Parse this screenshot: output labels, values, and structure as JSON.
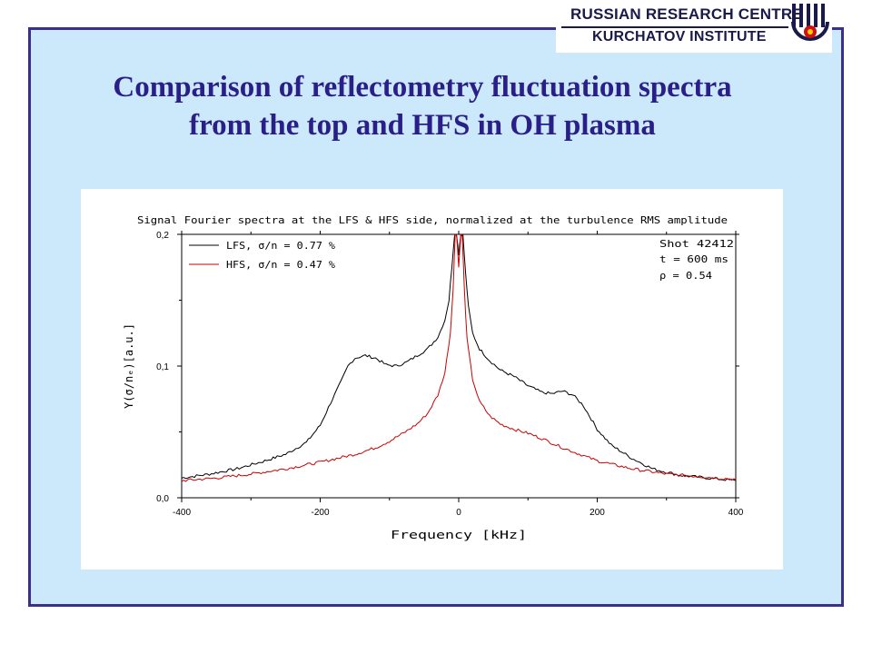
{
  "slide": {
    "title_line1": "Comparison of reflectometry fluctuation spectra",
    "title_line2": "from the top and HFS in OH plasma"
  },
  "logo": {
    "line1": "RUSSIAN RESEARCH CENTRE",
    "line2": "KURCHATOV INSTITUTE"
  },
  "colors": {
    "frame_border": "#3b2f8c",
    "frame_fill": "#cce9fb",
    "title": "#2a1f88",
    "lfs_series": "#000000",
    "hfs_series": "#cc0000"
  },
  "chart_data": {
    "type": "line",
    "title": "Signal Fourier spectra at the LFS & HFS side, normalized at the turbulence RMS amplitude",
    "xlabel": "Frequency [kHz]",
    "ylabel": "Y(σ/nₑ)[a.u.]",
    "xlim": [
      -400,
      400
    ],
    "ylim": [
      0.0,
      0.2
    ],
    "x_ticks": [
      "-400",
      "-200",
      "0",
      "200",
      "400"
    ],
    "y_ticks": [
      "0,0",
      "0,1",
      "0,2"
    ],
    "grid": false,
    "legend": "top-left",
    "annotation": [
      "Shot 42412",
      "t = 600 ms",
      "ρ = 0.54"
    ],
    "series": [
      {
        "name": "LFS, σ/n = 0.77 %",
        "x": [
          -400,
          -360,
          -320,
          -280,
          -250,
          -220,
          -200,
          -185,
          -170,
          -160,
          -150,
          -135,
          -120,
          -105,
          -90,
          -75,
          -60,
          -45,
          -30,
          -20,
          -14,
          -10,
          -6,
          -3,
          0,
          3,
          6,
          10,
          14,
          20,
          30,
          45,
          60,
          80,
          100,
          120,
          135,
          150,
          165,
          180,
          200,
          220,
          250,
          280,
          320,
          360,
          400
        ],
        "values": [
          0.015,
          0.018,
          0.022,
          0.028,
          0.033,
          0.042,
          0.055,
          0.072,
          0.088,
          0.1,
          0.106,
          0.108,
          0.106,
          0.101,
          0.1,
          0.103,
          0.108,
          0.113,
          0.122,
          0.135,
          0.15,
          0.175,
          0.2,
          0.2,
          0.185,
          0.2,
          0.2,
          0.17,
          0.145,
          0.125,
          0.113,
          0.104,
          0.097,
          0.092,
          0.085,
          0.08,
          0.079,
          0.081,
          0.078,
          0.07,
          0.052,
          0.04,
          0.03,
          0.022,
          0.017,
          0.015,
          0.013
        ]
      },
      {
        "name": "HFS, σ/n = 0.47 %",
        "x": [
          -400,
          -350,
          -300,
          -250,
          -200,
          -150,
          -120,
          -100,
          -80,
          -60,
          -45,
          -30,
          -20,
          -12,
          -8,
          -5,
          -3,
          0,
          3,
          5,
          8,
          12,
          20,
          30,
          45,
          60,
          80,
          100,
          120,
          150,
          180,
          200,
          250,
          300,
          350,
          400
        ],
        "values": [
          0.013,
          0.015,
          0.018,
          0.022,
          0.027,
          0.033,
          0.038,
          0.043,
          0.049,
          0.056,
          0.064,
          0.078,
          0.095,
          0.125,
          0.16,
          0.2,
          0.2,
          0.175,
          0.2,
          0.2,
          0.16,
          0.12,
          0.09,
          0.073,
          0.062,
          0.056,
          0.052,
          0.049,
          0.045,
          0.038,
          0.032,
          0.028,
          0.022,
          0.018,
          0.016,
          0.014
        ]
      }
    ]
  }
}
